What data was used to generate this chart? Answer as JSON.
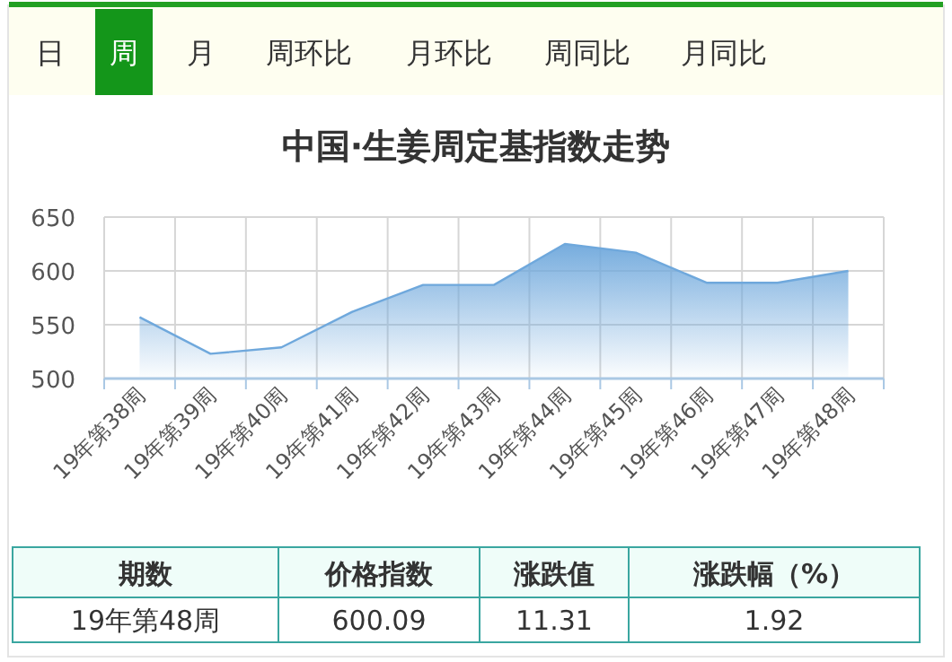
{
  "chart_data": {
    "type": "area",
    "title": "中国·生姜周定基指数走势",
    "categories": [
      "19年第38周",
      "19年第39周",
      "19年第40周",
      "19年第41周",
      "19年第42周",
      "19年第43周",
      "19年第44周",
      "19年第45周",
      "19年第46周",
      "19年第47周",
      "19年第48周"
    ],
    "series": [
      {
        "color": "#6fa8dc",
        "values": [
          557,
          523,
          529,
          562,
          587,
          587,
          625,
          617,
          589,
          589,
          600
        ]
      }
    ],
    "ylim": [
      500,
      650
    ],
    "yticks": [
      500,
      550,
      600,
      650
    ],
    "grid": true,
    "marker": "none",
    "annotations": [
      "日",
      "周",
      "月",
      "周环比",
      "月环比",
      "周同比",
      "月同比",
      "期数",
      "价格指数",
      "涨跌值",
      "涨跌幅（%）",
      "19年第48周",
      "600.09",
      "11.31",
      "1.92"
    ]
  }
}
